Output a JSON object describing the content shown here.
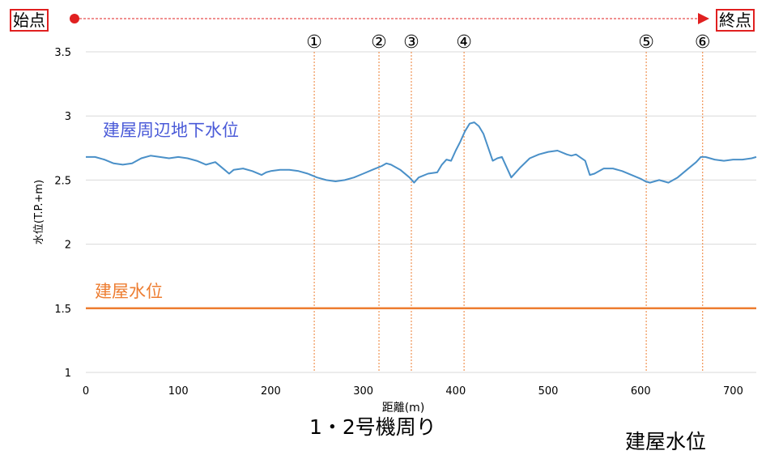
{
  "header": {
    "start_label": "始点",
    "end_label": "終点",
    "arrow_color": "#e02020"
  },
  "caption": "1・2号機周り",
  "caption_partial": "建屋水位",
  "chart_data": {
    "type": "line",
    "title": "",
    "xlabel": "距離(m)",
    "ylabel": "水位(T.P.+m)",
    "xlim": [
      0,
      725
    ],
    "ylim": [
      1,
      3.5
    ],
    "xticks": [
      0,
      100,
      200,
      300,
      400,
      500,
      600,
      700
    ],
    "yticks": [
      1,
      1.5,
      2,
      2.5,
      3,
      3.5
    ],
    "grid": "horizontal",
    "markers": [
      {
        "label": "①",
        "x": 247
      },
      {
        "label": "②",
        "x": 317
      },
      {
        "label": "③",
        "x": 352
      },
      {
        "label": "④",
        "x": 409
      },
      {
        "label": "⑤",
        "x": 606
      },
      {
        "label": "⑥",
        "x": 667
      }
    ],
    "series": [
      {
        "name": "建屋周辺地下水位",
        "color": "#4a90c8",
        "label_color": "#4a5ad8",
        "x": [
          0,
          10,
          20,
          30,
          40,
          50,
          60,
          70,
          80,
          90,
          100,
          110,
          120,
          130,
          140,
          150,
          155,
          160,
          170,
          180,
          190,
          195,
          200,
          210,
          220,
          230,
          240,
          250,
          260,
          270,
          280,
          290,
          300,
          310,
          320,
          325,
          330,
          340,
          350,
          355,
          360,
          370,
          380,
          385,
          390,
          395,
          400,
          405,
          410,
          415,
          420,
          425,
          430,
          440,
          445,
          450,
          460,
          470,
          480,
          490,
          500,
          510,
          520,
          525,
          530,
          540,
          545,
          550,
          560,
          570,
          580,
          590,
          600,
          605,
          610,
          620,
          630,
          640,
          650,
          660,
          665,
          670,
          680,
          690,
          700,
          710,
          720,
          725
        ],
        "values": [
          2.68,
          2.68,
          2.66,
          2.63,
          2.62,
          2.63,
          2.67,
          2.69,
          2.68,
          2.67,
          2.68,
          2.67,
          2.65,
          2.62,
          2.64,
          2.58,
          2.55,
          2.58,
          2.59,
          2.57,
          2.54,
          2.56,
          2.57,
          2.58,
          2.58,
          2.57,
          2.55,
          2.52,
          2.5,
          2.49,
          2.5,
          2.52,
          2.55,
          2.58,
          2.61,
          2.63,
          2.62,
          2.58,
          2.52,
          2.48,
          2.52,
          2.55,
          2.56,
          2.62,
          2.66,
          2.65,
          2.73,
          2.8,
          2.88,
          2.94,
          2.95,
          2.92,
          2.86,
          2.65,
          2.67,
          2.68,
          2.52,
          2.6,
          2.67,
          2.7,
          2.72,
          2.73,
          2.7,
          2.69,
          2.7,
          2.65,
          2.54,
          2.55,
          2.59,
          2.59,
          2.57,
          2.54,
          2.51,
          2.49,
          2.48,
          2.5,
          2.48,
          2.52,
          2.58,
          2.64,
          2.68,
          2.68,
          2.66,
          2.65,
          2.66,
          2.66,
          2.67,
          2.68
        ]
      },
      {
        "name": "建屋水位",
        "color": "#ed7d31",
        "label_color": "#ed7d31",
        "x": [
          0,
          725
        ],
        "values": [
          1.5,
          1.5
        ]
      }
    ]
  }
}
